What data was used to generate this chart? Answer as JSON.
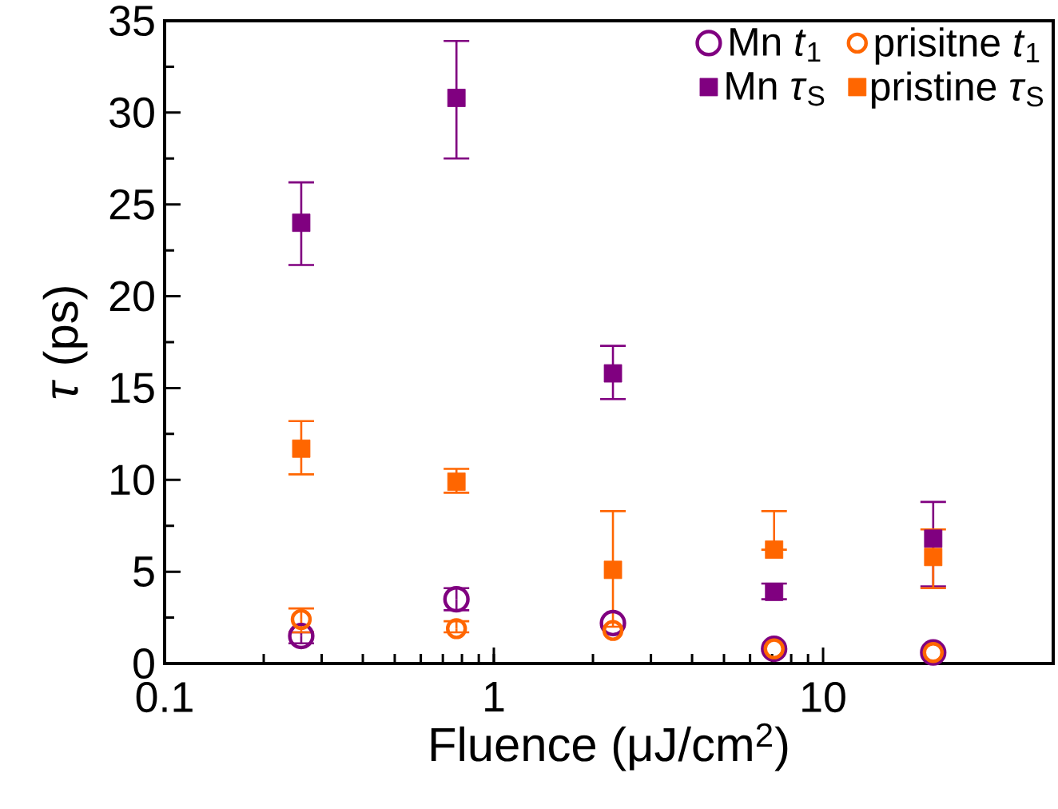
{
  "chart_data": {
    "type": "scatter",
    "xlabel": "Fluence (μJ/cm$^{2}$)",
    "ylabel": "*τ* (ps)",
    "log": "x",
    "xlim": [
      0.1,
      50
    ],
    "xticks": [
      0.1,
      1,
      10
    ],
    "ylim": [
      0,
      35
    ],
    "yticks": [
      0,
      5,
      10,
      15,
      20,
      25,
      30,
      35
    ],
    "legend": "top right",
    "grid": false,
    "series": [
      {
        "name": "Mn *t*$_{1}$",
        "color": "#800080",
        "marker": "circle",
        "x": [
          0.26,
          0.77,
          2.3,
          7.1,
          21.6
        ],
        "values": [
          1.5,
          3.5,
          2.2,
          0.8,
          0.6
        ],
        "errors": [
          [
            1.1,
            1.7
          ],
          [
            2.9,
            4.1
          ],
          null,
          null,
          null
        ]
      },
      {
        "name": "prisitne *t*$_{1}$",
        "color": "#ff6600",
        "marker": "circle",
        "x": [
          0.26,
          0.77,
          2.3,
          7.1,
          21.6
        ],
        "values": [
          2.4,
          1.9,
          1.8,
          0.8,
          0.6
        ],
        "errors": [
          [
            1.7,
            3.0
          ],
          [
            1.7,
            2.3
          ],
          null,
          null,
          null
        ]
      },
      {
        "name": "Mn *τ*$_{S}$",
        "color": "#800080",
        "marker": "square",
        "x": [
          0.26,
          0.77,
          2.3,
          7.1,
          21.6
        ],
        "values": [
          24.0,
          30.8,
          15.8,
          3.9,
          6.8
        ],
        "errors": [
          [
            21.7,
            26.2
          ],
          [
            27.5,
            33.9
          ],
          [
            14.4,
            17.3
          ],
          [
            3.5,
            4.35
          ],
          [
            4.2,
            8.8
          ]
        ]
      },
      {
        "name": "pristine *τ*$_{S}$",
        "color": "#ff6600",
        "marker": "square",
        "x": [
          0.26,
          0.77,
          2.3,
          7.1,
          21.6
        ],
        "values": [
          11.7,
          9.9,
          5.1,
          6.2,
          5.8
        ],
        "errors": [
          [
            10.3,
            13.2
          ],
          [
            9.3,
            10.6
          ],
          [
            2.0,
            8.3
          ],
          [
            6.2,
            8.3
          ],
          [
            4.1,
            7.3
          ]
        ]
      }
    ]
  }
}
